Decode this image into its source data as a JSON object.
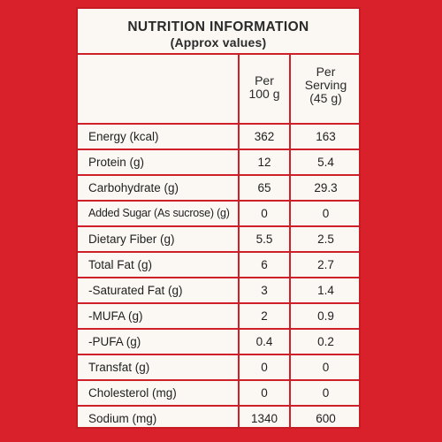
{
  "header": {
    "title": "NUTRITION INFORMATION",
    "subtitle": "(Approx values)"
  },
  "columns": {
    "per100_line1": "Per",
    "per100_line2": "100 g",
    "serving_line1": "Per",
    "serving_line2": "Serving",
    "serving_line3": "(45 g)"
  },
  "rows": [
    {
      "label": "Energy (kcal)",
      "per100": "362",
      "serving": "163"
    },
    {
      "label": "Protein (g)",
      "per100": "12",
      "serving": "5.4"
    },
    {
      "label": "Carbohydrate (g)",
      "per100": "65",
      "serving": "29.3"
    },
    {
      "label": "Added Sugar (As sucrose) (g)",
      "per100": "0",
      "serving": "0"
    },
    {
      "label": "Dietary Fiber (g)",
      "per100": "5.5",
      "serving": "2.5"
    },
    {
      "label": "Total Fat (g)",
      "per100": "6",
      "serving": "2.7"
    },
    {
      "label": "-Saturated Fat (g)",
      "per100": "3",
      "serving": "1.4"
    },
    {
      "label": "-MUFA (g)",
      "per100": "2",
      "serving": "0.9"
    },
    {
      "label": "-PUFA (g)",
      "per100": "0.4",
      "serving": "0.2"
    },
    {
      "label": "Transfat (g)",
      "per100": "0",
      "serving": "0"
    },
    {
      "label": "Cholesterol (mg)",
      "per100": "0",
      "serving": "0"
    },
    {
      "label": "Sodium (mg)",
      "per100": "1340",
      "serving": "600"
    }
  ],
  "colors": {
    "background_red": "#d9212c",
    "panel_white": "#fbf8f4",
    "rule_red": "#cf1f28"
  }
}
